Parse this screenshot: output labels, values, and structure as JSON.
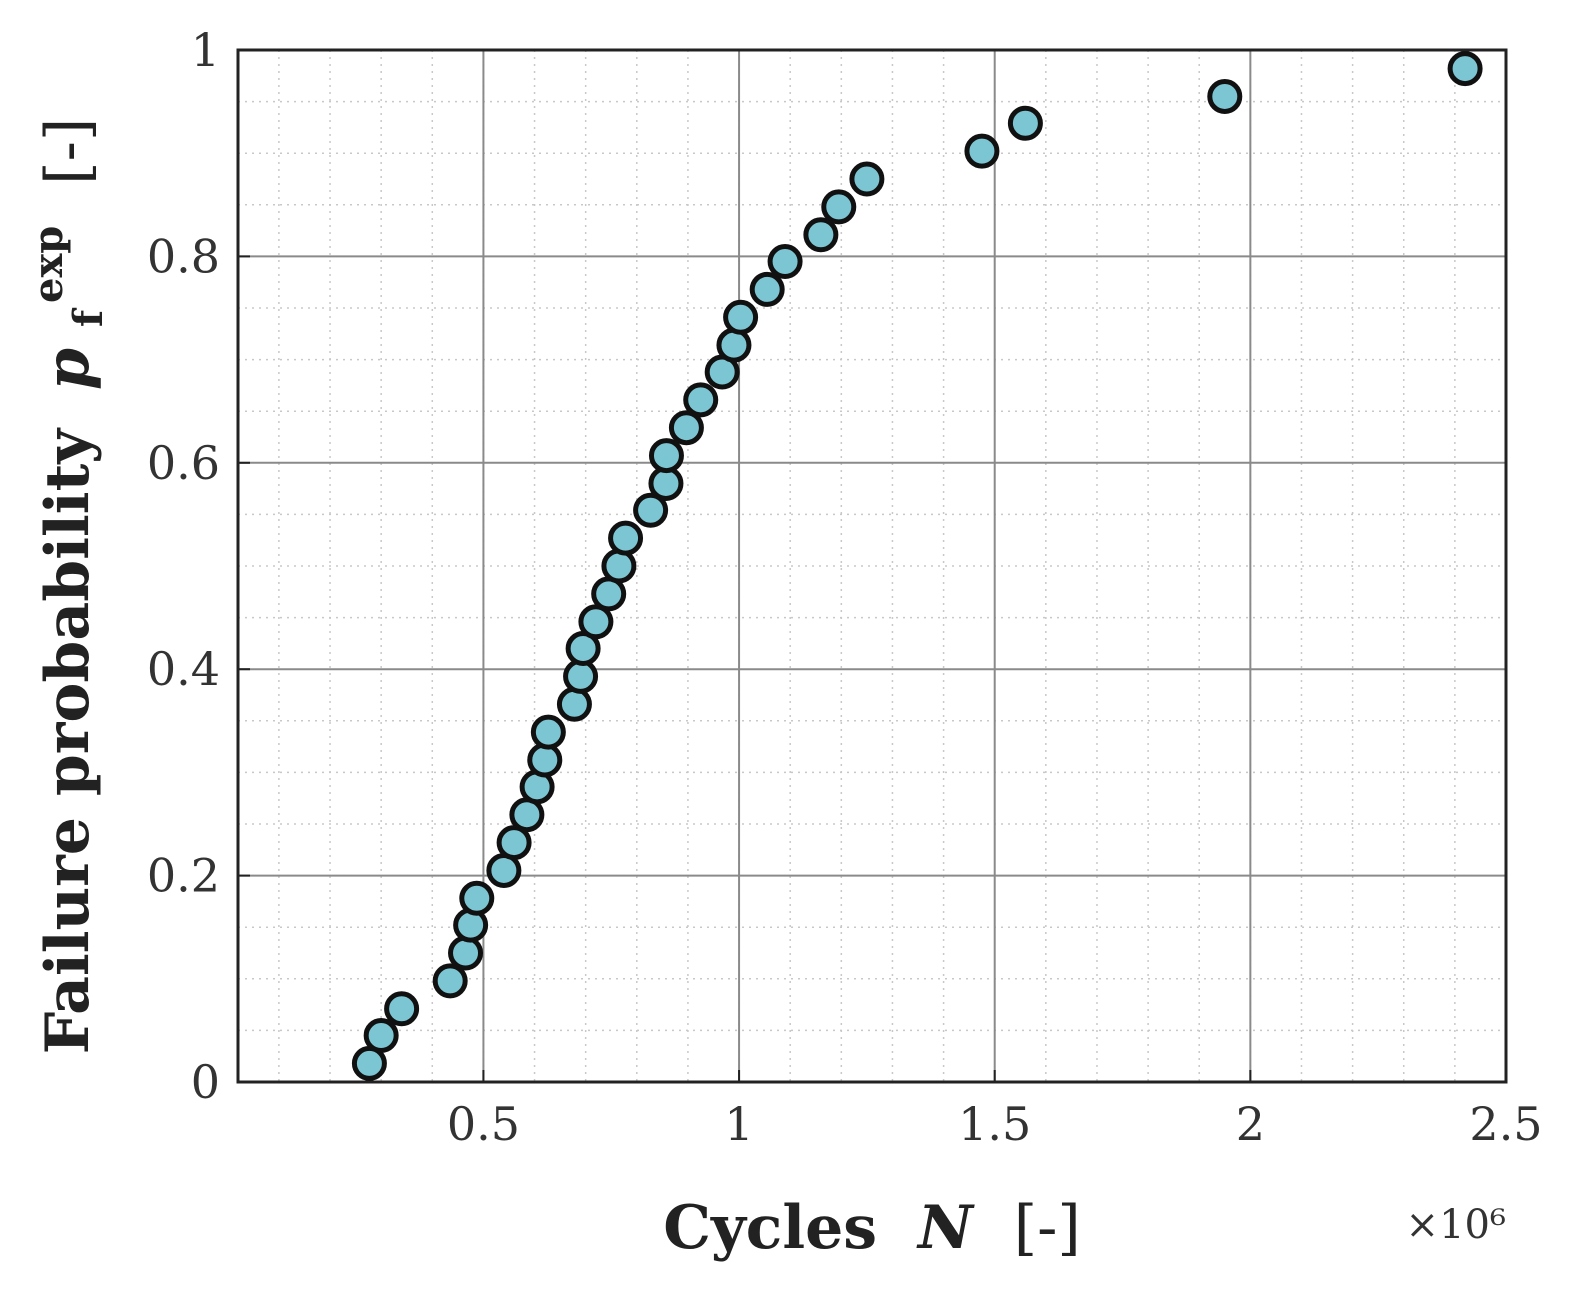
{
  "chart_data": {
    "type": "scatter",
    "xlabel": {
      "text": "Cycles",
      "variable": "N",
      "unit": "[-]"
    },
    "ylabel": {
      "text": "Failure probability",
      "variable": "p",
      "subscript": "f",
      "superscript": "exp",
      "unit": "[-]"
    },
    "x_exponent": "×10⁶",
    "xlim": [
      0.02,
      2.5
    ],
    "ylim": [
      0,
      1
    ],
    "x_ticks": [
      {
        "value": 0.5,
        "label": "0.5"
      },
      {
        "value": 1.0,
        "label": "1"
      },
      {
        "value": 1.5,
        "label": "1.5"
      },
      {
        "value": 2.0,
        "label": "2"
      },
      {
        "value": 2.5,
        "label": "2.5"
      }
    ],
    "y_ticks": [
      {
        "value": 0,
        "label": "0"
      },
      {
        "value": 0.2,
        "label": "0.2"
      },
      {
        "value": 0.4,
        "label": "0.4"
      },
      {
        "value": 0.6,
        "label": "0.6"
      },
      {
        "value": 0.8,
        "label": "0.8"
      },
      {
        "value": 1.0,
        "label": "1"
      }
    ],
    "grid": true,
    "minor_grid": true,
    "marker_color": "#7cc6d4",
    "marker_edge_color": "#111111",
    "points": [
      {
        "x": 0.277,
        "y": 0.018
      },
      {
        "x": 0.3,
        "y": 0.045
      },
      {
        "x": 0.34,
        "y": 0.071
      },
      {
        "x": 0.435,
        "y": 0.098
      },
      {
        "x": 0.465,
        "y": 0.125
      },
      {
        "x": 0.475,
        "y": 0.152
      },
      {
        "x": 0.487,
        "y": 0.178
      },
      {
        "x": 0.54,
        "y": 0.205
      },
      {
        "x": 0.56,
        "y": 0.232
      },
      {
        "x": 0.585,
        "y": 0.259
      },
      {
        "x": 0.605,
        "y": 0.286
      },
      {
        "x": 0.62,
        "y": 0.312
      },
      {
        "x": 0.627,
        "y": 0.339
      },
      {
        "x": 0.678,
        "y": 0.366
      },
      {
        "x": 0.69,
        "y": 0.393
      },
      {
        "x": 0.695,
        "y": 0.42
      },
      {
        "x": 0.72,
        "y": 0.446
      },
      {
        "x": 0.745,
        "y": 0.473
      },
      {
        "x": 0.765,
        "y": 0.5
      },
      {
        "x": 0.778,
        "y": 0.527
      },
      {
        "x": 0.827,
        "y": 0.554
      },
      {
        "x": 0.857,
        "y": 0.58
      },
      {
        "x": 0.858,
        "y": 0.607
      },
      {
        "x": 0.897,
        "y": 0.634
      },
      {
        "x": 0.925,
        "y": 0.661
      },
      {
        "x": 0.967,
        "y": 0.688
      },
      {
        "x": 0.99,
        "y": 0.714
      },
      {
        "x": 1.003,
        "y": 0.741
      },
      {
        "x": 1.055,
        "y": 0.768
      },
      {
        "x": 1.09,
        "y": 0.795
      },
      {
        "x": 1.16,
        "y": 0.821
      },
      {
        "x": 1.195,
        "y": 0.848
      },
      {
        "x": 1.25,
        "y": 0.875
      },
      {
        "x": 1.475,
        "y": 0.902
      },
      {
        "x": 1.56,
        "y": 0.929
      },
      {
        "x": 1.95,
        "y": 0.955
      },
      {
        "x": 2.42,
        "y": 0.982
      }
    ]
  }
}
